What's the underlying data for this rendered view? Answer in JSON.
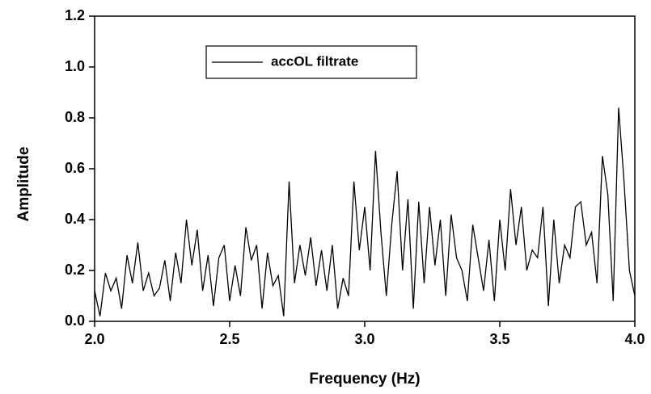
{
  "chart_data": {
    "type": "line",
    "x_label": "Frequency (Hz)",
    "y_label": "Amplitude",
    "xlim": [
      2.0,
      4.0
    ],
    "ylim": [
      0.0,
      1.2
    ],
    "xticks": [
      {
        "value": 2.0,
        "label": "2.0"
      },
      2.5,
      {
        "value": 3.0,
        "label": "3.0"
      },
      3.5,
      {
        "value": 4.0,
        "label": "4.0"
      }
    ],
    "yticks": [
      {
        "value": 0.0,
        "label": "0.0"
      },
      0.2,
      0.4,
      0.6,
      0.8,
      {
        "value": 1.0,
        "label": "1.0"
      },
      1.2
    ],
    "legend": "top-left",
    "x": [
      2.0,
      2.02,
      2.04,
      2.06,
      2.08,
      2.1,
      2.12,
      2.14,
      2.16,
      2.18,
      2.2,
      2.22,
      2.24,
      2.26,
      2.28,
      2.3,
      2.32,
      2.34,
      2.36,
      2.38,
      2.4,
      2.42,
      2.44,
      2.46,
      2.48,
      2.5,
      2.52,
      2.54,
      2.56,
      2.58,
      2.6,
      2.62,
      2.64,
      2.66,
      2.68,
      2.7,
      2.72,
      2.74,
      2.76,
      2.78,
      2.8,
      2.82,
      2.84,
      2.86,
      2.88,
      2.9,
      2.92,
      2.94,
      2.96,
      2.98,
      3.0,
      3.02,
      3.04,
      3.06,
      3.08,
      3.1,
      3.12,
      3.14,
      3.16,
      3.18,
      3.2,
      3.22,
      3.24,
      3.26,
      3.28,
      3.3,
      3.32,
      3.34,
      3.36,
      3.38,
      3.4,
      3.42,
      3.44,
      3.46,
      3.48,
      3.5,
      3.52,
      3.54,
      3.56,
      3.58,
      3.6,
      3.62,
      3.64,
      3.66,
      3.68,
      3.7,
      3.72,
      3.74,
      3.76,
      3.78,
      3.8,
      3.82,
      3.84,
      3.86,
      3.88,
      3.9,
      3.92,
      3.94,
      3.96,
      3.98,
      4.0
    ],
    "series": [
      {
        "name": "accOL filtrate",
        "color": "#000000",
        "values": [
          0.12,
          0.02,
          0.19,
          0.12,
          0.17,
          0.05,
          0.26,
          0.15,
          0.31,
          0.12,
          0.19,
          0.1,
          0.13,
          0.24,
          0.08,
          0.27,
          0.15,
          0.4,
          0.22,
          0.36,
          0.12,
          0.26,
          0.06,
          0.25,
          0.3,
          0.08,
          0.22,
          0.1,
          0.37,
          0.24,
          0.3,
          0.05,
          0.27,
          0.14,
          0.18,
          0.02,
          0.55,
          0.15,
          0.3,
          0.18,
          0.33,
          0.14,
          0.28,
          0.12,
          0.3,
          0.05,
          0.17,
          0.1,
          0.55,
          0.28,
          0.45,
          0.2,
          0.67,
          0.35,
          0.1,
          0.38,
          0.59,
          0.2,
          0.48,
          0.05,
          0.47,
          0.15,
          0.45,
          0.22,
          0.4,
          0.1,
          0.42,
          0.25,
          0.2,
          0.08,
          0.38,
          0.25,
          0.12,
          0.32,
          0.08,
          0.4,
          0.2,
          0.52,
          0.3,
          0.45,
          0.2,
          0.28,
          0.25,
          0.45,
          0.06,
          0.4,
          0.15,
          0.3,
          0.25,
          0.45,
          0.47,
          0.3,
          0.35,
          0.15,
          0.65,
          0.5,
          0.08,
          0.84,
          0.55,
          0.2,
          0.1
        ]
      }
    ]
  }
}
